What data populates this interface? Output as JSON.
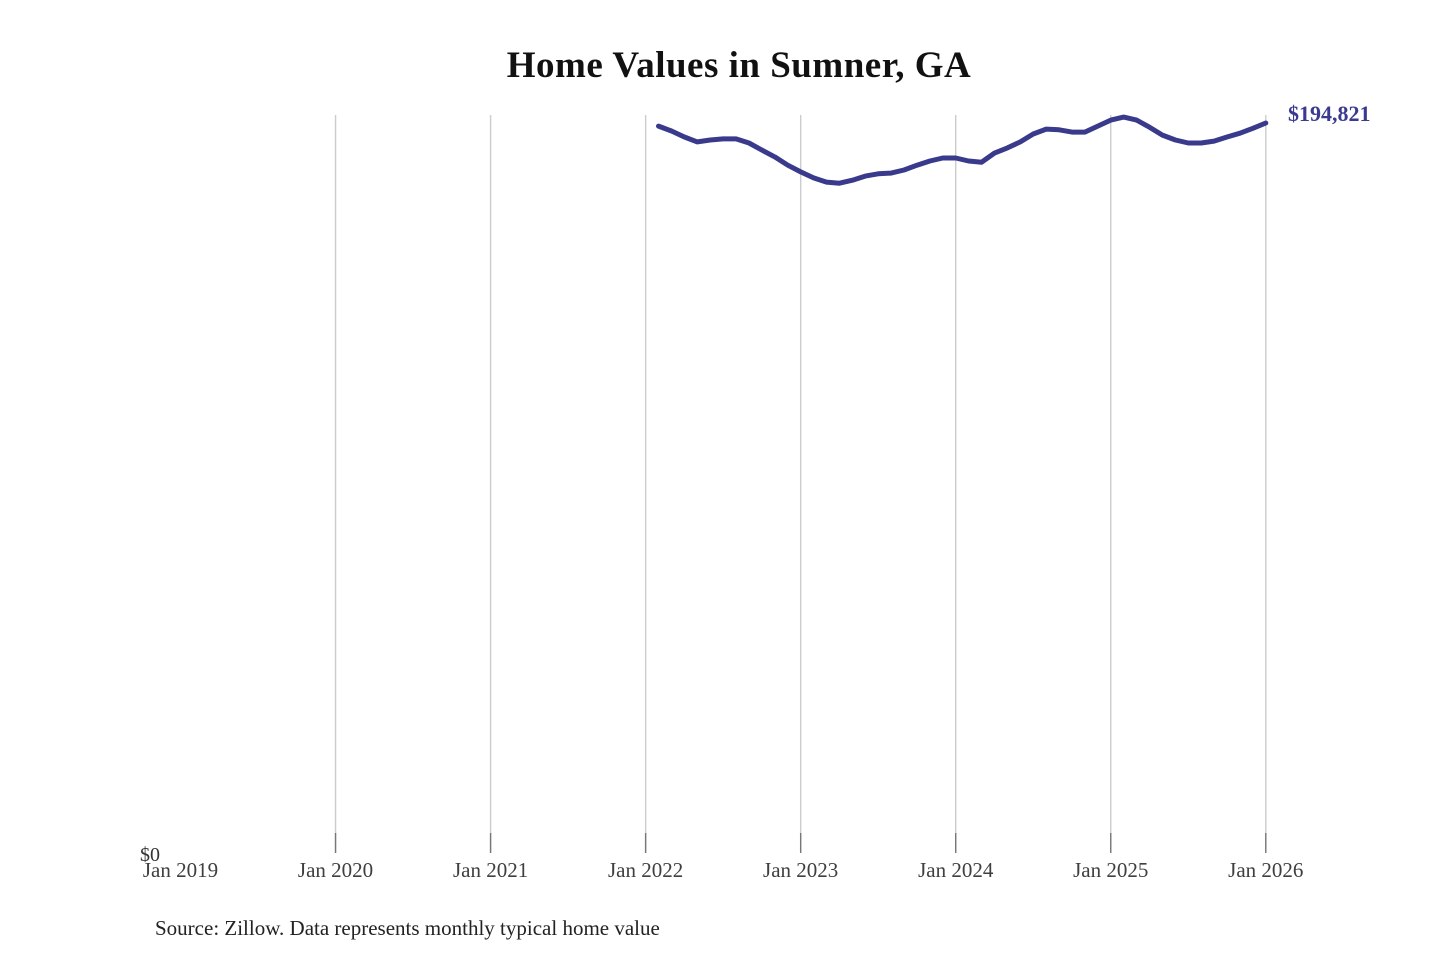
{
  "title": "Home Values in Sumner, GA",
  "end_label": "$194,821",
  "source_note": "Source: Zillow. Data represents monthly typical home value",
  "y_axis": {
    "zero_label": "$0"
  },
  "x_axis": {
    "tick_labels": [
      "Jan 2019",
      "Jan 2020",
      "Jan 2021",
      "Jan 2022",
      "Jan 2023",
      "Jan 2024",
      "Jan 2025",
      "Jan 2026"
    ],
    "gridline_years": [
      2020,
      2021,
      2022,
      2023,
      2024,
      2025,
      2026
    ]
  },
  "colors": {
    "line": "#3a3a8c",
    "end_label": "#3a3a8f",
    "gridline": "#cccccc",
    "tick": "#777777",
    "axis_text": "#3f3f3f",
    "title_text": "#111111",
    "source_text": "#222222"
  },
  "chart_data": {
    "type": "line",
    "title": "Home Values in Sumner, GA",
    "frequency": "monthly",
    "x_start": "2022-02",
    "x_end": "2026-01",
    "x_axis_range": [
      "2019-01",
      "2026-01"
    ],
    "ylim": [
      0,
      205000
    ],
    "grid": "vertical-yearly",
    "legend": "none",
    "last_value": 194821,
    "last_value_label": "$194,821",
    "series": [
      {
        "name": "Typical home value",
        "values": [
          194000,
          192700,
          191100,
          189800,
          190300,
          190600,
          190600,
          189500,
          187600,
          185800,
          183600,
          181800,
          180200,
          179100,
          178800,
          179600,
          180700,
          181300,
          181500,
          182300,
          183600,
          184700,
          185500,
          185500,
          184700,
          184400,
          186800,
          188200,
          189800,
          191900,
          193200,
          193000,
          192400,
          192400,
          194000,
          195600,
          196400,
          195600,
          193700,
          191600,
          190300,
          189500,
          189500,
          190000,
          191100,
          192100,
          193400,
          194821
        ]
      }
    ]
  }
}
